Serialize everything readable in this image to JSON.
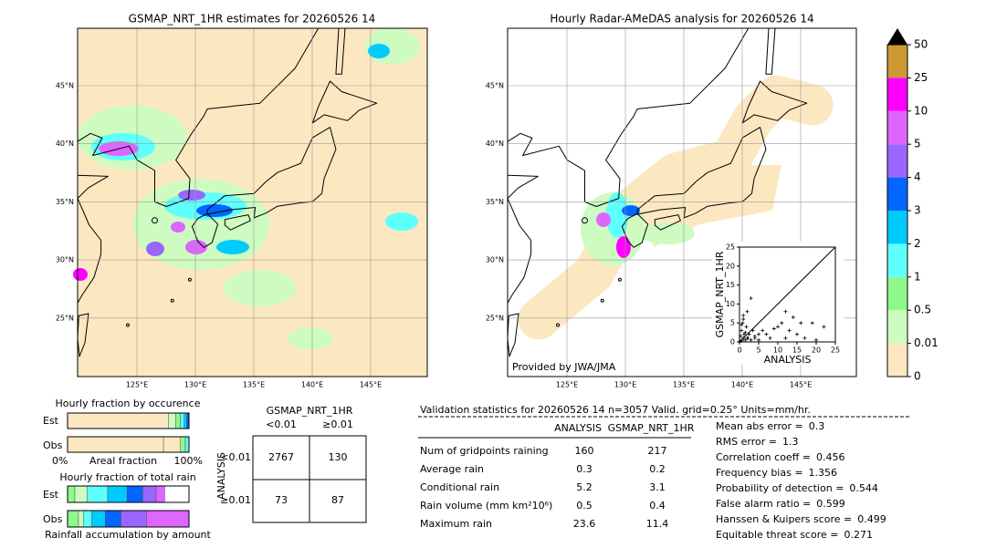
{
  "left_map": {
    "title": "GSMAP_NRT_1HR estimates for 20260526 14",
    "lat_labels": [
      "45°N",
      "40°N",
      "35°N",
      "30°N",
      "25°N"
    ],
    "lon_labels": [
      "125°E",
      "130°E",
      "135°E",
      "140°E",
      "145°E"
    ]
  },
  "right_map": {
    "title": "Hourly Radar-AMeDAS analysis for 20260526 14",
    "lat_labels": [
      "45°N",
      "40°N",
      "35°N",
      "30°N",
      "25°N"
    ],
    "lon_labels": [
      "125°E",
      "130°E",
      "135°E",
      "140°E",
      "145°E"
    ],
    "credit": "Provided by JWA/JMA"
  },
  "colorbar": {
    "ticks": [
      0,
      0.01,
      0.5,
      1,
      2,
      3,
      4,
      5,
      10,
      25,
      50
    ],
    "colors": [
      "#fce8c0",
      "#cdfbc0",
      "#8ef98a",
      "#5ffffd",
      "#00cbff",
      "#0066ff",
      "#9966ff",
      "#dd66ff",
      "#ff00ff",
      "#cc9933"
    ],
    "over_color": "#000000"
  },
  "scatter": {
    "xlabel": "ANALYSIS",
    "ylabel": "GSMAP_NRT_1HR",
    "xlim": [
      0,
      25
    ],
    "ylim": [
      0,
      25
    ],
    "xticks": [
      0,
      5,
      10,
      15,
      20,
      25
    ],
    "yticks": [
      0,
      5,
      10,
      15,
      20,
      25
    ],
    "x": [
      0.2,
      0.5,
      0.8,
      1,
      1.2,
      1.5,
      2,
      2.5,
      3,
      0.3,
      0.6,
      1,
      1.8,
      2.2,
      3.5,
      4,
      5,
      6,
      7,
      8,
      9,
      10,
      11,
      12,
      13,
      15,
      16,
      17,
      20,
      22,
      3,
      2,
      1,
      4,
      5,
      0.5,
      1.5,
      12,
      14,
      19
    ],
    "y": [
      0.2,
      3,
      5,
      1,
      2,
      0.5,
      1,
      2,
      0.5,
      1.5,
      0.3,
      6,
      4,
      1,
      3,
      1.5,
      2,
      3,
      2,
      1,
      3.5,
      4,
      5,
      1,
      3,
      2,
      5,
      1,
      0.5,
      4,
      11.5,
      8,
      7,
      1,
      0.5,
      4.5,
      2.5,
      8,
      6.5,
      5
    ]
  },
  "occurrence": {
    "title": "Hourly fraction by occurence",
    "rows": [
      "Est",
      "Obs"
    ],
    "axis_labels": [
      "0%",
      "Areal fraction",
      "100%"
    ],
    "est": [
      0.83,
      0.06,
      0.04,
      0.03,
      0.02,
      0.02
    ],
    "obs": [
      0.79,
      0.14,
      0.04,
      0.03
    ]
  },
  "total_rain": {
    "title": "Hourly fraction of total rain",
    "rows": [
      "Est",
      "Obs"
    ],
    "footer": "Rainfall accumulation by amount",
    "est": [
      0.06,
      0.1,
      0.17,
      0.16,
      0.13,
      0.11,
      0.07
    ],
    "obs": [
      0.09,
      0.04,
      0.07,
      0.11,
      0.13,
      0.21,
      0.35
    ]
  },
  "contingency": {
    "header": "GSMAP_NRT_1HR",
    "cols": [
      "<0.01",
      "≥0.01"
    ],
    "row_axis": "ANALYSIS",
    "rows": [
      "<0.01",
      "≥0.01"
    ],
    "cells": [
      [
        2767,
        130
      ],
      [
        73,
        87
      ]
    ]
  },
  "validation": {
    "title": "Validation statistics for 20260526 14  n=3057 Valid. grid=0.25° Units=mm/hr.",
    "columns": [
      "ANALYSIS",
      "GSMAP_NRT_1HR"
    ],
    "rows": [
      {
        "label": "Num of gridpoints raining",
        "values": [
          160,
          217
        ]
      },
      {
        "label": "Average rain",
        "values": [
          0.3,
          0.2
        ]
      },
      {
        "label": "Conditional rain",
        "values": [
          5.2,
          3.1
        ]
      },
      {
        "label": "Rain volume (mm km²10⁶)",
        "values": [
          0.5,
          0.4
        ]
      },
      {
        "label": "Maximum rain",
        "values": [
          23.6,
          11.4
        ]
      }
    ],
    "scores": [
      {
        "label": "Mean abs error =",
        "value": 0.3
      },
      {
        "label": "RMS error =",
        "value": 1.3
      },
      {
        "label": "Correlation coeff =",
        "value": 0.456
      },
      {
        "label": "Frequency bias =",
        "value": 1.356
      },
      {
        "label": "Probability of detection =",
        "value": 0.544
      },
      {
        "label": "False alarm ratio =",
        "value": 0.599
      },
      {
        "label": "Hanssen & Kuipers score =",
        "value": 0.499
      },
      {
        "label": "Equitable threat score =",
        "value": 0.271
      }
    ]
  }
}
